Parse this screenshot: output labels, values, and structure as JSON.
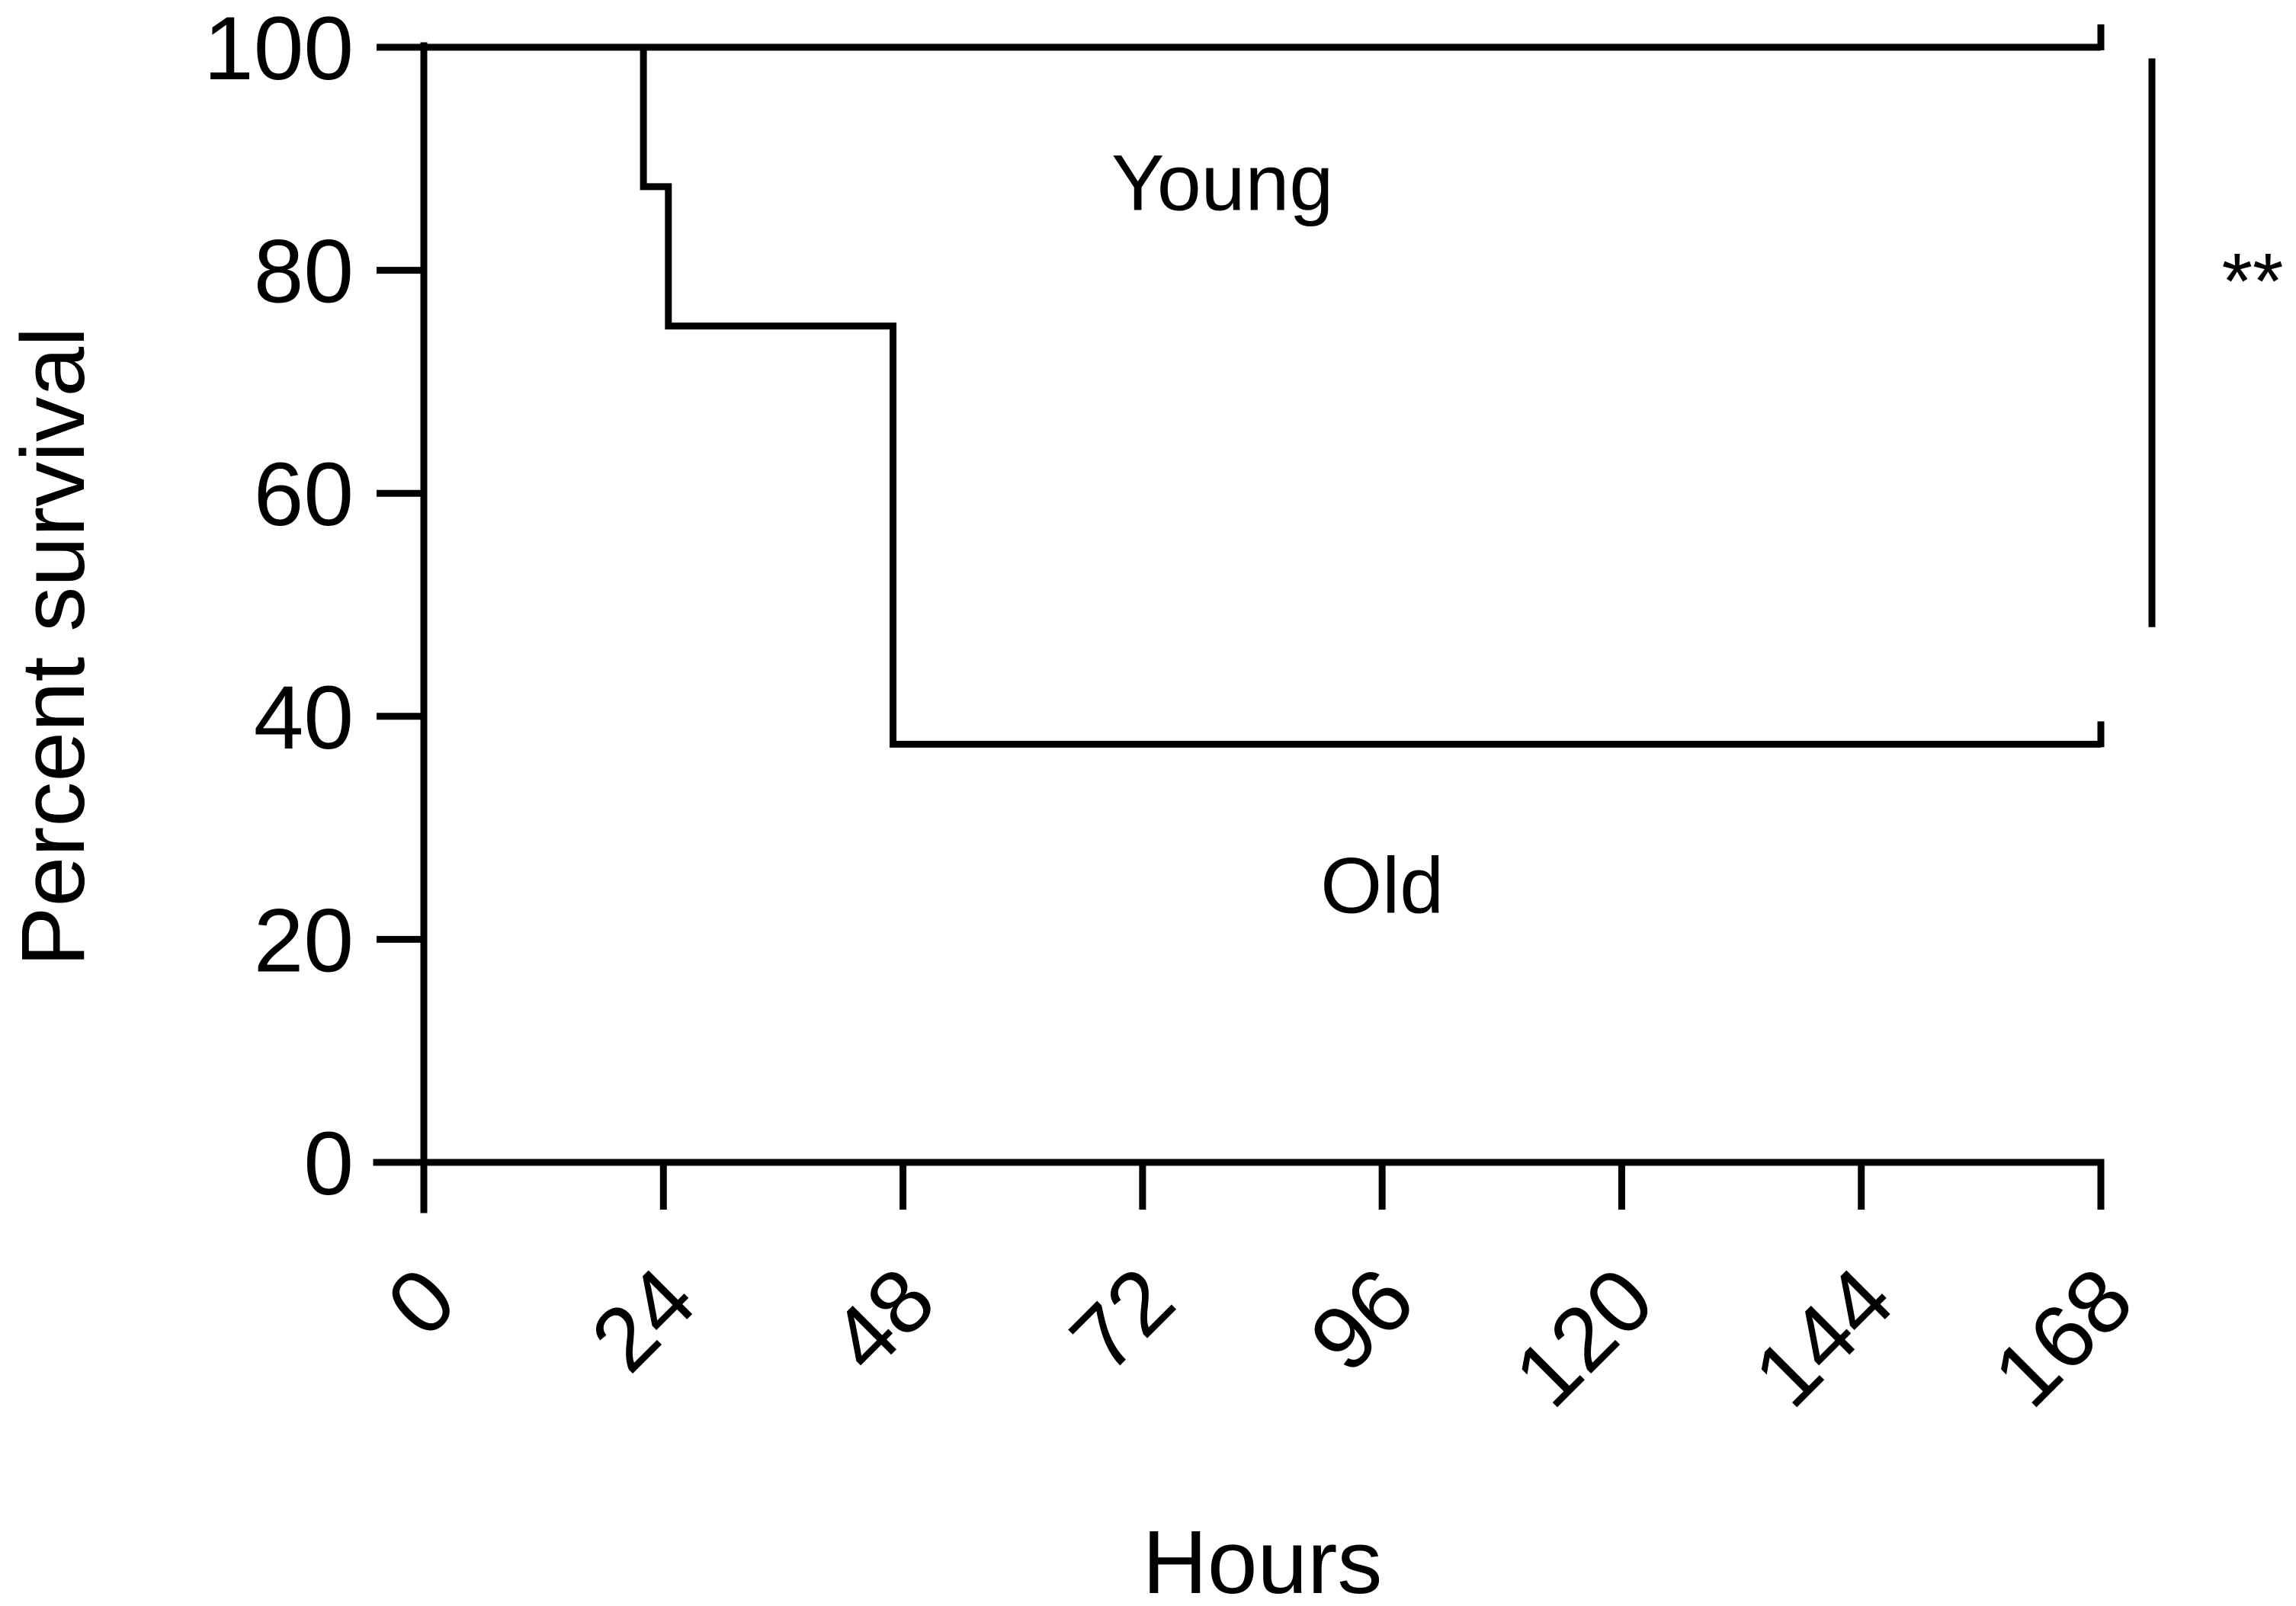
{
  "chart_data": {
    "type": "line",
    "subtype": "kaplan-meier-step",
    "title": "",
    "xlabel": "Hours",
    "ylabel": "Percent survival",
    "xlim": [
      0,
      168
    ],
    "ylim": [
      0,
      100
    ],
    "x_ticks": [
      0,
      24,
      48,
      72,
      96,
      120,
      144,
      168
    ],
    "x_tick_labels": [
      "0",
      "24",
      "48",
      "72",
      "96",
      "120",
      "144",
      "168"
    ],
    "y_ticks": [
      0,
      20,
      40,
      60,
      80,
      100
    ],
    "y_tick_labels": [
      "0",
      "20",
      "40",
      "60",
      "80",
      "100"
    ],
    "grid": false,
    "legend": "none",
    "series": [
      {
        "name": "Young",
        "label_at": [
          80,
          88
        ],
        "points": [
          [
            0,
            100
          ],
          [
            168,
            100
          ]
        ]
      },
      {
        "name": "Old",
        "label_at": [
          96,
          25
        ],
        "points": [
          [
            0,
            100
          ],
          [
            22,
            100
          ],
          [
            22,
            87.5
          ],
          [
            24.5,
            87.5
          ],
          [
            24.5,
            75
          ],
          [
            47,
            75
          ],
          [
            47,
            37.5
          ],
          [
            168,
            37.5
          ]
        ]
      }
    ],
    "significance": {
      "label": "**",
      "between": [
        "Young",
        "Old"
      ],
      "y_range": [
        48,
        99
      ]
    },
    "colors": {
      "line": "#000000",
      "background": "#ffffff"
    }
  }
}
